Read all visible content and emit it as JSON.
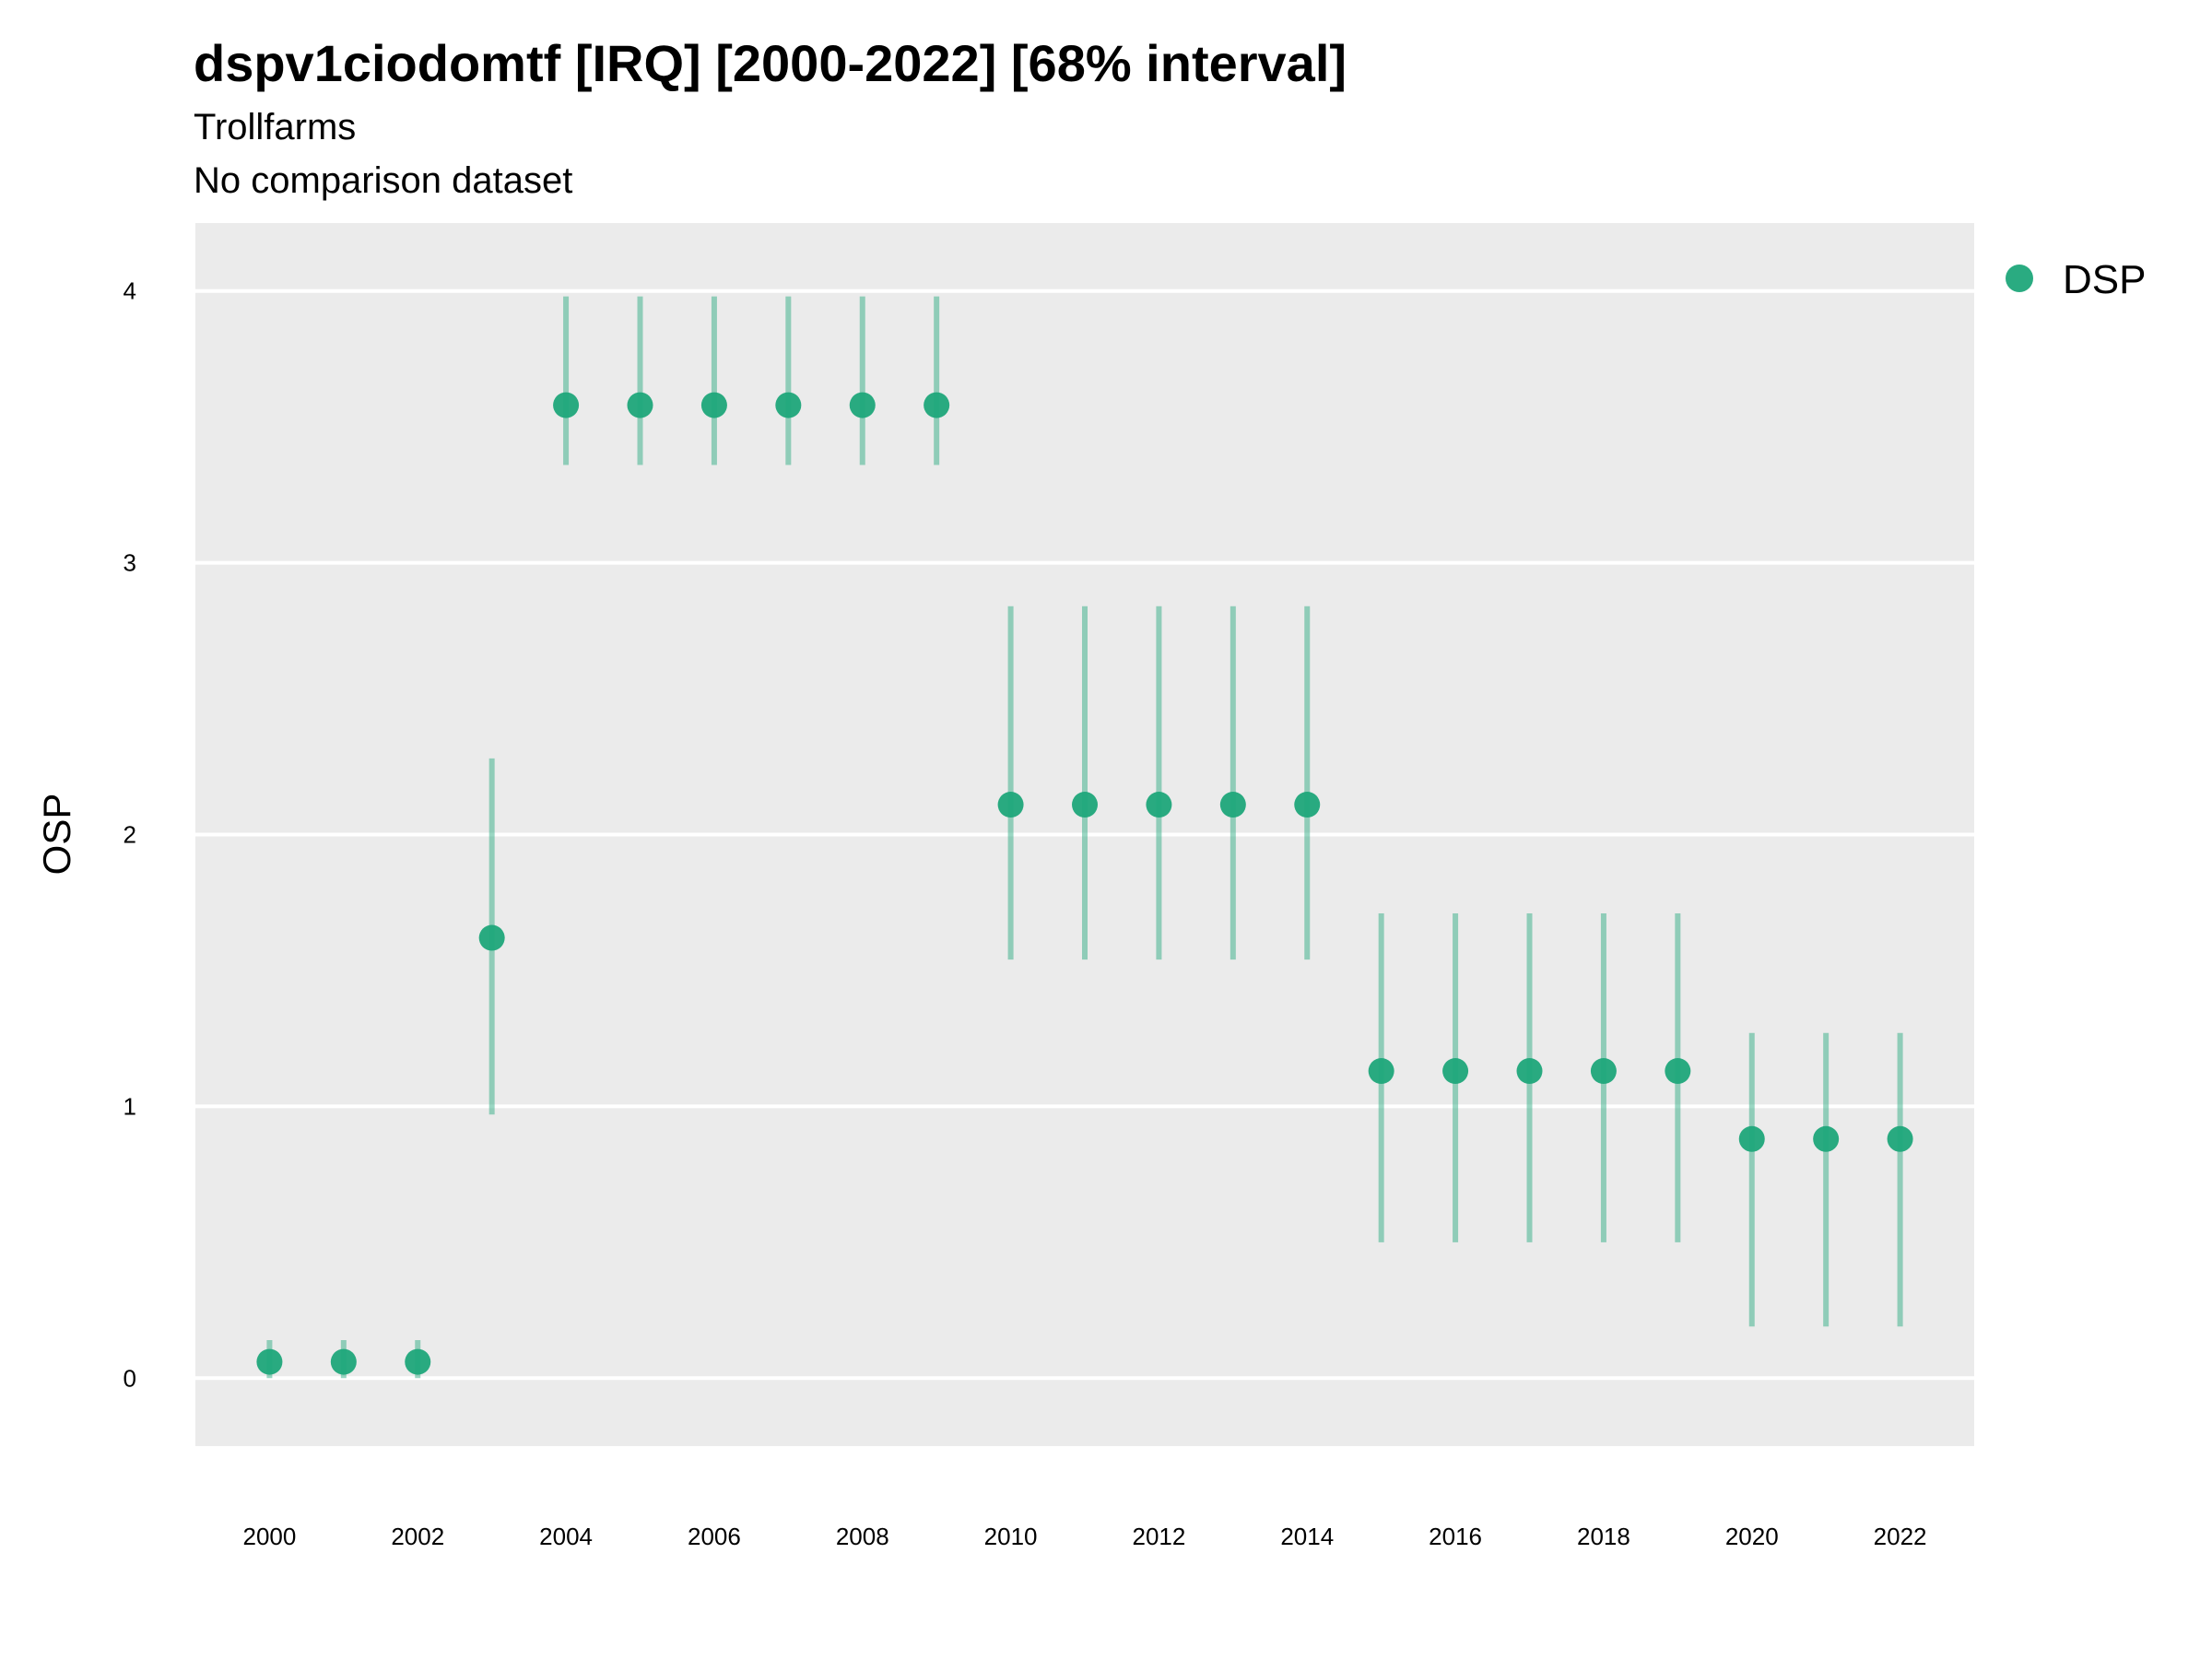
{
  "chart_data": {
    "type": "scatter",
    "title": "dspv1ciodomtf [IRQ] [2000-2022] [68% interval]",
    "subtitle": "Trollfarms",
    "caption": "No comparison dataset",
    "xlabel": "",
    "ylabel": "OSP",
    "xlim": [
      1999,
      2023
    ],
    "ylim": [
      -0.25,
      4.25
    ],
    "xticks": [
      2000,
      2002,
      2004,
      2006,
      2008,
      2010,
      2012,
      2014,
      2016,
      2018,
      2020,
      2022
    ],
    "yticks": [
      0,
      1,
      2,
      3,
      4
    ],
    "grid": true,
    "legend_position": "right",
    "color": "#1fa67a",
    "series": [
      {
        "name": "DSP",
        "x": [
          2000,
          2001,
          2002,
          2003,
          2004,
          2005,
          2006,
          2007,
          2008,
          2009,
          2010,
          2011,
          2012,
          2013,
          2014,
          2015,
          2016,
          2017,
          2018,
          2019,
          2020,
          2021,
          2022
        ],
        "y": [
          0.06,
          0.06,
          0.06,
          1.62,
          3.58,
          3.58,
          3.58,
          3.58,
          3.58,
          3.58,
          2.11,
          2.11,
          2.11,
          2.11,
          2.11,
          1.13,
          1.13,
          1.13,
          1.13,
          1.13,
          0.88,
          0.88,
          0.88
        ],
        "lower": [
          0.0,
          0.0,
          0.0,
          0.97,
          3.36,
          3.36,
          3.36,
          3.36,
          3.36,
          3.36,
          1.54,
          1.54,
          1.54,
          1.54,
          1.54,
          0.5,
          0.5,
          0.5,
          0.5,
          0.5,
          0.19,
          0.19,
          0.19
        ],
        "upper": [
          0.14,
          0.14,
          0.14,
          2.28,
          3.98,
          3.98,
          3.98,
          3.98,
          3.98,
          3.98,
          2.84,
          2.84,
          2.84,
          2.84,
          2.84,
          1.71,
          1.71,
          1.71,
          1.71,
          1.71,
          1.27,
          1.27,
          1.27
        ]
      }
    ]
  },
  "legend": {
    "label": "DSP"
  }
}
